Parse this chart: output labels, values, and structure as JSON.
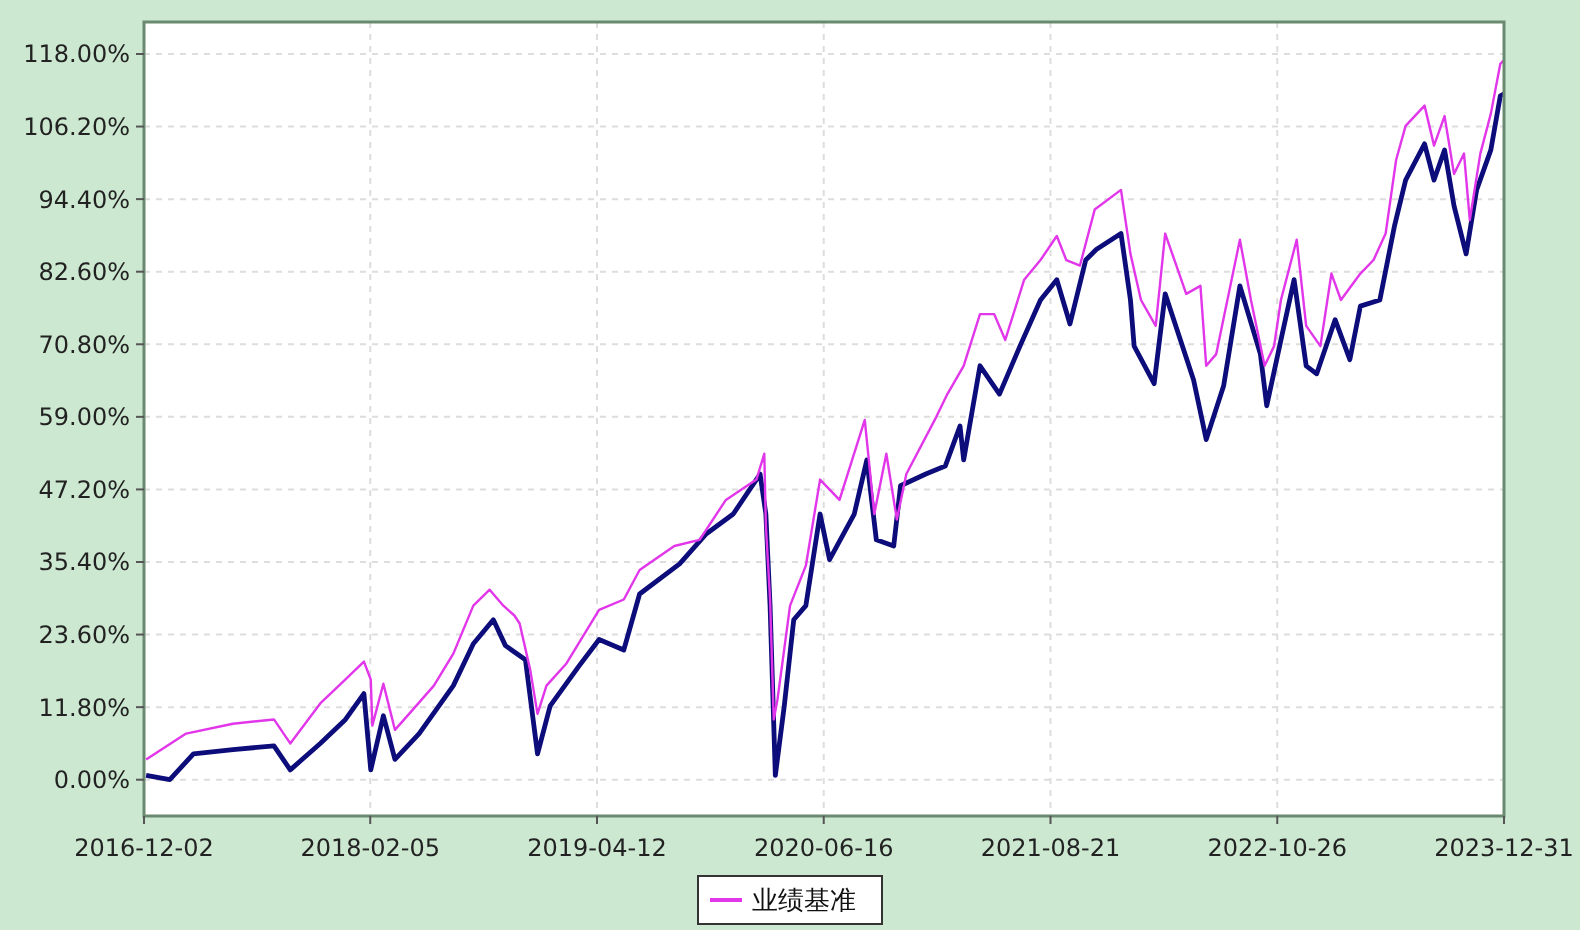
{
  "chart_data": {
    "type": "line",
    "series": [
      {
        "color": "#0c0c7a",
        "x": [
          "2016-12-06",
          "2017-01-20",
          "2017-03-06",
          "2017-05-20",
          "2017-08-06",
          "2017-09-06",
          "2017-11-02",
          "2017-12-20",
          "2018-01-24",
          "2018-02-06",
          "2018-03-02",
          "2018-03-24",
          "2018-05-09",
          "2018-07-13",
          "2018-08-20",
          "2018-09-27",
          "2018-10-20",
          "2018-11-27",
          "2018-12-20",
          "2019-01-13",
          "2019-03-09",
          "2019-04-16",
          "2019-06-02",
          "2019-07-02",
          "2019-09-16",
          "2019-11-06",
          "2019-12-27",
          "2020-02-16",
          "2020-02-27",
          "2020-03-06",
          "2020-03-16",
          "2020-04-02",
          "2020-04-20",
          "2020-05-13",
          "2020-06-09",
          "2020-06-27",
          "2020-08-13",
          "2020-09-06",
          "2020-09-24",
          "2020-10-27",
          "2020-11-09",
          "2020-12-27",
          "2021-02-02",
          "2021-03-02",
          "2021-03-09",
          "2021-04-09",
          "2021-05-16",
          "2021-06-24",
          "2021-08-02",
          "2021-09-02",
          "2021-09-27",
          "2021-10-27",
          "2021-11-16",
          "2022-01-02",
          "2022-01-20",
          "2022-01-27",
          "2022-03-06",
          "2022-03-27",
          "2022-05-20",
          "2022-06-13",
          "2022-07-16",
          "2022-08-16",
          "2022-09-24",
          "2022-10-06",
          "2022-11-02",
          "2022-11-27",
          "2022-12-20",
          "2023-01-09",
          "2023-02-13",
          "2023-03-13",
          "2023-04-02",
          "2023-05-09",
          "2023-06-06",
          "2023-06-27",
          "2023-08-02",
          "2023-08-20",
          "2023-09-09",
          "2023-09-27",
          "2023-10-20",
          "2023-11-09",
          "2023-12-06",
          "2023-12-24",
          "2023-12-31"
        ],
        "values": [
          0.7,
          0,
          4.2,
          4.9,
          5.5,
          1.6,
          5.9,
          9.8,
          14.0,
          1.6,
          10.4,
          3.3,
          7.5,
          15.3,
          22.1,
          26.0,
          21.8,
          19.5,
          4.2,
          12.0,
          18.5,
          22.8,
          21.1,
          30.2,
          35.1,
          40.0,
          43.2,
          49.7,
          43.2,
          28.3,
          0.7,
          12.0,
          26.0,
          28.3,
          43.2,
          35.8,
          43.2,
          52.0,
          39.0,
          38.0,
          47.8,
          49.7,
          51.0,
          57.5,
          52.0,
          67.3,
          62.7,
          70.5,
          78.0,
          81.3,
          74.1,
          84.5,
          86.2,
          88.8,
          78.0,
          70.5,
          64.4,
          79.0,
          65.0,
          55.3,
          64.0,
          80.3,
          69.2,
          60.8,
          71.5,
          81.3,
          67.3,
          66.0,
          74.8,
          68.3,
          77.0,
          78.0,
          90.1,
          97.5,
          103.4,
          97.5,
          102.4,
          93.3,
          85.5,
          95.9,
          102.4,
          111.2,
          111.5
        ]
      },
      {
        "name": "业绩基准",
        "color": "#e236ea",
        "x": [
          "2016-12-06",
          "2017-02-20",
          "2017-05-20",
          "2017-08-06",
          "2017-09-06",
          "2017-11-02",
          "2017-12-20",
          "2018-01-24",
          "2018-02-06",
          "2018-02-09",
          "2018-03-02",
          "2018-03-24",
          "2018-04-27",
          "2018-06-06",
          "2018-07-13",
          "2018-08-20",
          "2018-09-20",
          "2018-10-16",
          "2018-11-06",
          "2018-11-16",
          "2018-12-06",
          "2018-12-20",
          "2019-01-06",
          "2019-02-13",
          "2019-04-16",
          "2019-06-02",
          "2019-07-02",
          "2019-09-06",
          "2019-10-24",
          "2019-12-13",
          "2020-02-09",
          "2020-02-24",
          "2020-02-27",
          "2020-03-06",
          "2020-03-13",
          "2020-03-20",
          "2020-04-13",
          "2020-05-13",
          "2020-06-09",
          "2020-07-16",
          "2020-09-02",
          "2020-09-20",
          "2020-10-13",
          "2020-11-02",
          "2020-11-20",
          "2021-01-13",
          "2021-02-06",
          "2021-03-09",
          "2021-04-09",
          "2021-05-06",
          "2021-05-27",
          "2021-07-02",
          "2021-08-02",
          "2021-09-02",
          "2021-09-20",
          "2021-10-16",
          "2021-11-13",
          "2022-01-02",
          "2022-01-20",
          "2022-02-09",
          "2022-03-09",
          "2022-03-27",
          "2022-05-06",
          "2022-06-02",
          "2022-06-13",
          "2022-07-02",
          "2022-08-16",
          "2022-09-06",
          "2022-10-02",
          "2022-10-20",
          "2022-11-02",
          "2022-12-02",
          "2022-12-20",
          "2023-01-16",
          "2023-02-06",
          "2023-02-24",
          "2023-04-02",
          "2023-04-27",
          "2023-05-20",
          "2023-06-09",
          "2023-06-27",
          "2023-08-02",
          "2023-08-20",
          "2023-09-09",
          "2023-09-27",
          "2023-10-16",
          "2023-10-27",
          "2023-11-16",
          "2023-12-06",
          "2023-12-24",
          "2023-12-31"
        ],
        "values": [
          3.3,
          7.5,
          9.1,
          9.8,
          5.9,
          12.4,
          16.3,
          19.2,
          16.3,
          8.8,
          15.6,
          8.1,
          11.4,
          15.3,
          20.5,
          28.3,
          30.9,
          28.3,
          26.7,
          25.4,
          17.9,
          10.7,
          15.3,
          18.9,
          27.6,
          29.3,
          34.1,
          38.0,
          39.0,
          45.5,
          48.8,
          53.0,
          41.3,
          29.3,
          9.8,
          13.0,
          28.3,
          34.8,
          48.8,
          45.5,
          58.5,
          43.2,
          53.0,
          42.3,
          49.7,
          58.5,
          62.7,
          67.3,
          75.7,
          75.7,
          71.5,
          81.3,
          84.5,
          88.4,
          84.5,
          83.6,
          92.7,
          95.9,
          85.5,
          78.0,
          73.8,
          88.8,
          79.0,
          80.3,
          67.3,
          69.2,
          87.8,
          78.0,
          67.3,
          70.5,
          78.0,
          87.8,
          73.8,
          70.5,
          82.3,
          78.0,
          82.3,
          84.5,
          88.8,
          100.8,
          106.3,
          109.6,
          103.1,
          107.9,
          98.5,
          101.8,
          91.0,
          101.8,
          108.3,
          116.4,
          117.0
        ]
      }
    ],
    "xlim": [
      "2016-12-02",
      "2023-12-31"
    ],
    "xticks": [
      {
        "value": "2016-12-02",
        "label": "2016-12-02"
      },
      {
        "value": "2018-02-05",
        "label": "2018-02-05"
      },
      {
        "value": "2019-04-12",
        "label": "2019-04-12"
      },
      {
        "value": "2020-06-16",
        "label": "2020-06-16"
      },
      {
        "value": "2021-08-21",
        "label": "2021-08-21"
      },
      {
        "value": "2022-10-26",
        "label": "2022-10-26"
      },
      {
        "value": "2023-12-31",
        "label": "2023-12-31"
      }
    ],
    "ylim": [
      -5.9,
      123.2
    ],
    "yticks": [
      {
        "value": 0,
        "label": "0.00%"
      },
      {
        "value": 11.8,
        "label": "11.80%"
      },
      {
        "value": 23.6,
        "label": "23.60%"
      },
      {
        "value": 35.4,
        "label": "35.40%"
      },
      {
        "value": 47.2,
        "label": "47.20%"
      },
      {
        "value": 59,
        "label": "59.00%"
      },
      {
        "value": 70.8,
        "label": "70.80%"
      },
      {
        "value": 82.6,
        "label": "82.60%"
      },
      {
        "value": 94.4,
        "label": "94.40%"
      },
      {
        "value": 106.2,
        "label": "106.20%"
      },
      {
        "value": 118,
        "label": "118.00%"
      }
    ],
    "grid": true,
    "legend": "bottom",
    "marker": "none",
    "line_style": "solid"
  }
}
